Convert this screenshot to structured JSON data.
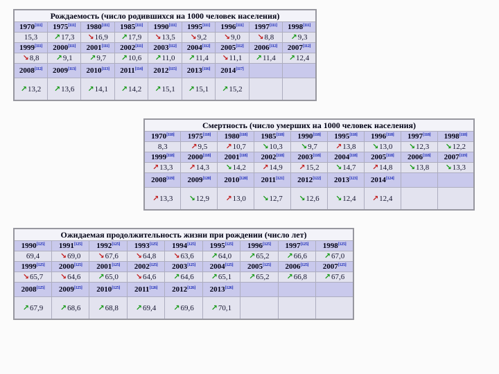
{
  "colors": {
    "good_trend": "#189a18",
    "bad_trend": "#c21f1f",
    "year_row_bg": "#c9c9ec",
    "value_row_bg": "#e3e3ef",
    "title_row_bg": "#f3f3f9",
    "table_border": "#97979f",
    "footnote_link": "#2433bb",
    "page_bg": "#fbfbfb"
  },
  "icons": {
    "trend_up": "↗",
    "trend_down": "↘"
  },
  "tables": [
    {
      "name": "birth-rate",
      "title": "Рождаемость (число родившихся на 1000 человек населения)",
      "row_pairs": [
        {
          "tall": false,
          "years": [
            {
              "y": "1970",
              "ref": "[111]"
            },
            {
              "y": "1975",
              "ref": "[111]"
            },
            {
              "y": "1980",
              "ref": "[111]"
            },
            {
              "y": "1985",
              "ref": "[111]"
            },
            {
              "y": "1990",
              "ref": "[111]"
            },
            {
              "y": "1995",
              "ref": "[111]"
            },
            {
              "y": "1996",
              "ref": "[111]"
            },
            {
              "y": "1997",
              "ref": "[111]"
            },
            {
              "y": "1998",
              "ref": "[111]"
            }
          ],
          "values": [
            {
              "v": "15,3",
              "dir": "",
              "good": null
            },
            {
              "v": "17,3",
              "dir": "up",
              "good": true
            },
            {
              "v": "16,9",
              "dir": "down",
              "good": false
            },
            {
              "v": "17,9",
              "dir": "up",
              "good": true
            },
            {
              "v": "13,5",
              "dir": "down",
              "good": false
            },
            {
              "v": "9,2",
              "dir": "down",
              "good": false
            },
            {
              "v": "9,0",
              "dir": "down",
              "good": false
            },
            {
              "v": "8,8",
              "dir": "down",
              "good": false
            },
            {
              "v": "9,3",
              "dir": "up",
              "good": true
            }
          ]
        },
        {
          "tall": false,
          "years": [
            {
              "y": "1999",
              "ref": "[111]"
            },
            {
              "y": "2000",
              "ref": "[111]"
            },
            {
              "y": "2001",
              "ref": "[111]"
            },
            {
              "y": "2002",
              "ref": "[111]"
            },
            {
              "y": "2003",
              "ref": "[112]"
            },
            {
              "y": "2004",
              "ref": "[112]"
            },
            {
              "y": "2005",
              "ref": "[112]"
            },
            {
              "y": "2006",
              "ref": "[112]"
            },
            {
              "y": "2007",
              "ref": "[112]"
            }
          ],
          "values": [
            {
              "v": "8,8",
              "dir": "down",
              "good": false
            },
            {
              "v": "9,1",
              "dir": "up",
              "good": true
            },
            {
              "v": "9,7",
              "dir": "up",
              "good": true
            },
            {
              "v": "10,6",
              "dir": "up",
              "good": true
            },
            {
              "v": "11,0",
              "dir": "up",
              "good": true
            },
            {
              "v": "11,4",
              "dir": "up",
              "good": true
            },
            {
              "v": "11,1",
              "dir": "down",
              "good": false
            },
            {
              "v": "11,4",
              "dir": "up",
              "good": true
            },
            {
              "v": "12,4",
              "dir": "up",
              "good": true
            }
          ]
        },
        {
          "tall": true,
          "years": [
            {
              "y": "2008",
              "ref": "[112]"
            },
            {
              "y": "2009",
              "ref": "[113]"
            },
            {
              "y": "2010",
              "ref": "[113]"
            },
            {
              "y": "2011",
              "ref": "[114]"
            },
            {
              "y": "2012",
              "ref": "[115]"
            },
            {
              "y": "2013",
              "ref": "[116]"
            },
            {
              "y": "2014",
              "ref": "[117]"
            },
            {
              "y": "",
              "ref": ""
            },
            {
              "y": "",
              "ref": ""
            }
          ],
          "values": [
            {
              "v": "13,2",
              "dir": "up",
              "good": true
            },
            {
              "v": "13,6",
              "dir": "up",
              "good": true
            },
            {
              "v": "14,1",
              "dir": "up",
              "good": true
            },
            {
              "v": "14,2",
              "dir": "up",
              "good": true
            },
            {
              "v": "15,1",
              "dir": "up",
              "good": true
            },
            {
              "v": "15,1",
              "dir": "up",
              "good": true
            },
            {
              "v": "15,2",
              "dir": "up",
              "good": true
            },
            {
              "v": "",
              "dir": "",
              "good": null
            },
            {
              "v": "",
              "dir": "",
              "good": null
            }
          ]
        }
      ]
    },
    {
      "name": "death-rate",
      "title": "Смертность (число умерших на 1000 человек населения)",
      "row_pairs": [
        {
          "tall": false,
          "years": [
            {
              "y": "1970",
              "ref": "[118]"
            },
            {
              "y": "1975",
              "ref": "[118]"
            },
            {
              "y": "1980",
              "ref": "[118]"
            },
            {
              "y": "1985",
              "ref": "[118]"
            },
            {
              "y": "1990",
              "ref": "[118]"
            },
            {
              "y": "1995",
              "ref": "[118]"
            },
            {
              "y": "1996",
              "ref": "[118]"
            },
            {
              "y": "1997",
              "ref": "[118]"
            },
            {
              "y": "1998",
              "ref": "[118]"
            }
          ],
          "values": [
            {
              "v": "8,3",
              "dir": "",
              "good": null
            },
            {
              "v": "9,5",
              "dir": "up",
              "good": false
            },
            {
              "v": "10,7",
              "dir": "up",
              "good": false
            },
            {
              "v": "10,3",
              "dir": "down",
              "good": true
            },
            {
              "v": "9,7",
              "dir": "down",
              "good": true
            },
            {
              "v": "13,8",
              "dir": "up",
              "good": false
            },
            {
              "v": "13,0",
              "dir": "down",
              "good": true
            },
            {
              "v": "12,3",
              "dir": "down",
              "good": true
            },
            {
              "v": "12,2",
              "dir": "down",
              "good": true
            }
          ]
        },
        {
          "tall": false,
          "years": [
            {
              "y": "1999",
              "ref": "[118]"
            },
            {
              "y": "2000",
              "ref": "[118]"
            },
            {
              "y": "2001",
              "ref": "[118]"
            },
            {
              "y": "2002",
              "ref": "[118]"
            },
            {
              "y": "2003",
              "ref": "[118]"
            },
            {
              "y": "2004",
              "ref": "[118]"
            },
            {
              "y": "2005",
              "ref": "[118]"
            },
            {
              "y": "2006",
              "ref": "[118]"
            },
            {
              "y": "2007",
              "ref": "[119]"
            }
          ],
          "values": [
            {
              "v": "13,3",
              "dir": "up",
              "good": false
            },
            {
              "v": "14,3",
              "dir": "up",
              "good": false
            },
            {
              "v": "14,2",
              "dir": "down",
              "good": true
            },
            {
              "v": "14,9",
              "dir": "up",
              "good": false
            },
            {
              "v": "15,2",
              "dir": "up",
              "good": false
            },
            {
              "v": "14,7",
              "dir": "down",
              "good": true
            },
            {
              "v": "14,8",
              "dir": "up",
              "good": false
            },
            {
              "v": "13,8",
              "dir": "down",
              "good": true
            },
            {
              "v": "13,3",
              "dir": "down",
              "good": true
            }
          ]
        },
        {
          "tall": true,
          "years": [
            {
              "y": "2008",
              "ref": "[119]"
            },
            {
              "y": "2009",
              "ref": "[120]"
            },
            {
              "y": "2010",
              "ref": "[120]"
            },
            {
              "y": "2011",
              "ref": "[121]"
            },
            {
              "y": "2012",
              "ref": "[122]"
            },
            {
              "y": "2013",
              "ref": "[123]"
            },
            {
              "y": "2014",
              "ref": "[124]"
            },
            {
              "y": "",
              "ref": ""
            },
            {
              "y": "",
              "ref": ""
            }
          ],
          "values": [
            {
              "v": "13,3",
              "dir": "up",
              "good": false
            },
            {
              "v": "12,9",
              "dir": "down",
              "good": true
            },
            {
              "v": "13,0",
              "dir": "up",
              "good": false
            },
            {
              "v": "12,7",
              "dir": "down",
              "good": true
            },
            {
              "v": "12,6",
              "dir": "down",
              "good": true
            },
            {
              "v": "12,4",
              "dir": "down",
              "good": true
            },
            {
              "v": "12,4",
              "dir": "up",
              "good": false
            },
            {
              "v": "",
              "dir": "",
              "good": null
            },
            {
              "v": "",
              "dir": "",
              "good": null
            }
          ]
        }
      ]
    },
    {
      "name": "life-expectancy",
      "title": "Ожидаемая продолжительность жизни при рождении (число лет)",
      "row_pairs": [
        {
          "tall": false,
          "years": [
            {
              "y": "1990",
              "ref": "[125]"
            },
            {
              "y": "1991",
              "ref": "[125]"
            },
            {
              "y": "1992",
              "ref": "[125]"
            },
            {
              "y": "1993",
              "ref": "[125]"
            },
            {
              "y": "1994",
              "ref": "[125]"
            },
            {
              "y": "1995",
              "ref": "[125]"
            },
            {
              "y": "1996",
              "ref": "[125]"
            },
            {
              "y": "1997",
              "ref": "[125]"
            },
            {
              "y": "1998",
              "ref": "[125]"
            }
          ],
          "values": [
            {
              "v": "69,4",
              "dir": "",
              "good": null
            },
            {
              "v": "69,0",
              "dir": "down",
              "good": false
            },
            {
              "v": "67,6",
              "dir": "down",
              "good": false
            },
            {
              "v": "64,8",
              "dir": "down",
              "good": false
            },
            {
              "v": "63,6",
              "dir": "down",
              "good": false
            },
            {
              "v": "64,0",
              "dir": "up",
              "good": true
            },
            {
              "v": "65,2",
              "dir": "up",
              "good": true
            },
            {
              "v": "66,6",
              "dir": "up",
              "good": true
            },
            {
              "v": "67,0",
              "dir": "up",
              "good": true
            }
          ]
        },
        {
          "tall": false,
          "years": [
            {
              "y": "1999",
              "ref": "[125]"
            },
            {
              "y": "2000",
              "ref": "[125]"
            },
            {
              "y": "2001",
              "ref": "[125]"
            },
            {
              "y": "2002",
              "ref": "[125]"
            },
            {
              "y": "2003",
              "ref": "[125]"
            },
            {
              "y": "2004",
              "ref": "[125]"
            },
            {
              "y": "2005",
              "ref": "[125]"
            },
            {
              "y": "2006",
              "ref": "[125]"
            },
            {
              "y": "2007",
              "ref": "[125]"
            }
          ],
          "values": [
            {
              "v": "65,7",
              "dir": "down",
              "good": false
            },
            {
              "v": "64,6",
              "dir": "down",
              "good": false
            },
            {
              "v": "65,0",
              "dir": "up",
              "good": true
            },
            {
              "v": "64,6",
              "dir": "down",
              "good": false
            },
            {
              "v": "64,6",
              "dir": "up",
              "good": true
            },
            {
              "v": "65,1",
              "dir": "up",
              "good": true
            },
            {
              "v": "65,2",
              "dir": "up",
              "good": true
            },
            {
              "v": "66,8",
              "dir": "up",
              "good": true
            },
            {
              "v": "67,6",
              "dir": "up",
              "good": true
            }
          ]
        },
        {
          "tall": true,
          "years": [
            {
              "y": "2008",
              "ref": "[125]"
            },
            {
              "y": "2009",
              "ref": "[125]"
            },
            {
              "y": "2010",
              "ref": "[125]"
            },
            {
              "y": "2011",
              "ref": "[126]"
            },
            {
              "y": "2012",
              "ref": "[126]"
            },
            {
              "y": "2013",
              "ref": "[126]"
            },
            {
              "y": "",
              "ref": ""
            },
            {
              "y": "",
              "ref": ""
            },
            {
              "y": "",
              "ref": ""
            }
          ],
          "values": [
            {
              "v": "67,9",
              "dir": "up",
              "good": true
            },
            {
              "v": "68,6",
              "dir": "up",
              "good": true
            },
            {
              "v": "68,8",
              "dir": "up",
              "good": true
            },
            {
              "v": "69,4",
              "dir": "up",
              "good": true
            },
            {
              "v": "69,6",
              "dir": "up",
              "good": true
            },
            {
              "v": "70,1",
              "dir": "up",
              "good": true
            },
            {
              "v": "",
              "dir": "",
              "good": null
            },
            {
              "v": "",
              "dir": "",
              "good": null
            },
            {
              "v": "",
              "dir": "",
              "good": null
            }
          ]
        }
      ]
    }
  ]
}
